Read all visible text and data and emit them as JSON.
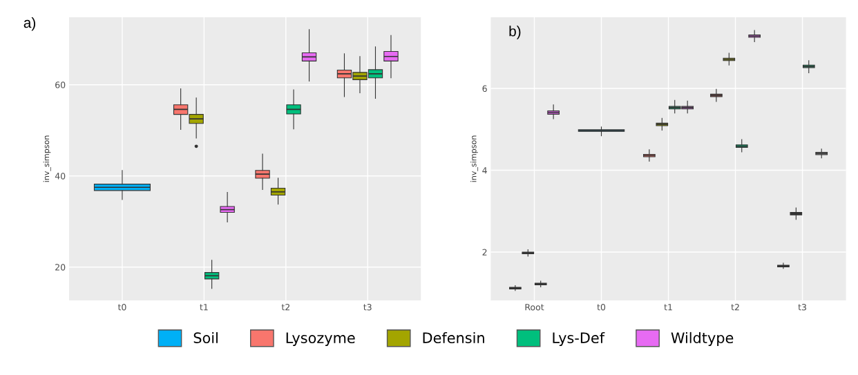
{
  "chart_data": [
    {
      "type": "box",
      "annotations": [
        "a)"
      ],
      "ylabel": "inv_simpson",
      "categories": [
        "t0",
        "t1",
        "t2",
        "t3"
      ],
      "ylim": [
        12.7,
        74.8
      ],
      "yticks": [
        20,
        40,
        60
      ],
      "grid": true,
      "legend": "bottom",
      "series": [
        {
          "name": "Soil",
          "color": "#00b0f6",
          "boxes": [
            {
              "low": 34.8,
              "q1": 36.8,
              "median": 37.5,
              "q3": 38.2,
              "high": 41.2
            },
            null,
            null,
            null
          ]
        },
        {
          "name": "Lysozyme",
          "color": "#f8766d",
          "boxes": [
            null,
            {
              "low": 50.2,
              "q1": 53.5,
              "median": 54.6,
              "q3": 55.6,
              "high": 59.1
            },
            {
              "low": 37.0,
              "q1": 39.5,
              "median": 40.4,
              "q3": 41.2,
              "high": 44.8
            },
            {
              "low": 57.4,
              "q1": 61.5,
              "median": 62.4,
              "q3": 63.2,
              "high": 66.8
            }
          ]
        },
        {
          "name": "Defensin",
          "color": "#a3a500",
          "boxes": [
            null,
            {
              "low": 48.3,
              "q1": 51.5,
              "median": 52.5,
              "q3": 53.5,
              "high": 57.1,
              "outliers": [
                46.5
              ]
            },
            {
              "low": 33.8,
              "q1": 35.8,
              "median": 36.5,
              "q3": 37.3,
              "high": 39.5
            },
            {
              "low": 58.2,
              "q1": 61.1,
              "median": 61.9,
              "q3": 62.7,
              "high": 66.2
            }
          ]
        },
        {
          "name": "Lys-Def",
          "color": "#00bf7d",
          "boxes": [
            null,
            {
              "low": 15.3,
              "q1": 17.4,
              "median": 18.1,
              "q3": 18.8,
              "high": 21.5
            },
            {
              "low": 50.3,
              "q1": 53.6,
              "median": 54.6,
              "q3": 55.6,
              "high": 58.9
            },
            {
              "low": 57.0,
              "q1": 61.5,
              "median": 62.4,
              "q3": 63.3,
              "high": 68.3
            }
          ]
        },
        {
          "name": "Wildtype",
          "color": "#e76bf3",
          "boxes": [
            null,
            {
              "low": 29.9,
              "q1": 32.0,
              "median": 32.6,
              "q3": 33.3,
              "high": 36.4
            },
            {
              "low": 60.8,
              "q1": 65.2,
              "median": 66.1,
              "q3": 67.0,
              "high": 72.1
            },
            {
              "low": 61.5,
              "q1": 65.2,
              "median": 66.2,
              "q3": 67.3,
              "high": 70.8
            }
          ]
        }
      ]
    },
    {
      "type": "box",
      "annotations": [
        "b)"
      ],
      "ylabel": "inv_simpson",
      "categories": [
        "Root",
        "t0",
        "t1",
        "t2",
        "t3"
      ],
      "ylim": [
        0.82,
        7.74
      ],
      "yticks": [
        2,
        4,
        6
      ],
      "grid": true,
      "series": [
        {
          "color": "#00b0f6",
          "boxes": [
            null,
            {
              "low": 4.84,
              "q1": 4.95,
              "median": 4.97,
              "q3": 4.99,
              "high": 5.06
            },
            null,
            null,
            null
          ]
        },
        {
          "color": "#f8766d",
          "colors": [
            "#333333",
            null,
            null,
            null,
            "#333333"
          ],
          "boxes": [
            {
              "low": 1.06,
              "q1": 1.1,
              "median": 1.12,
              "q3": 1.14,
              "high": 1.18
            },
            null,
            {
              "low": 4.22,
              "q1": 4.33,
              "median": 4.36,
              "q3": 4.39,
              "high": 4.5
            },
            {
              "low": 5.68,
              "q1": 5.8,
              "median": 5.83,
              "q3": 5.86,
              "high": 5.98
            },
            {
              "low": 1.6,
              "q1": 1.64,
              "median": 1.66,
              "q3": 1.68,
              "high": 1.73
            }
          ]
        },
        {
          "color": "#a3a500",
          "colors": [
            "#333333",
            null,
            null,
            null,
            "#333333"
          ],
          "boxes": [
            {
              "low": 1.9,
              "q1": 1.96,
              "median": 1.98,
              "q3": 2.0,
              "high": 2.06
            },
            null,
            {
              "low": 4.98,
              "q1": 5.09,
              "median": 5.12,
              "q3": 5.15,
              "high": 5.27
            },
            {
              "low": 6.57,
              "q1": 6.68,
              "median": 6.71,
              "q3": 6.74,
              "high": 6.86
            },
            {
              "low": 2.8,
              "q1": 2.91,
              "median": 2.94,
              "q3": 2.97,
              "high": 3.08
            }
          ]
        },
        {
          "color": "#00bf7d",
          "colors": [
            "#333333",
            null,
            null,
            null,
            null
          ],
          "boxes": [
            {
              "low": 1.15,
              "q1": 1.2,
              "median": 1.22,
              "q3": 1.24,
              "high": 1.29
            },
            null,
            {
              "low": 5.4,
              "q1": 5.5,
              "median": 5.53,
              "q3": 5.56,
              "high": 5.71
            },
            {
              "low": 4.45,
              "q1": 4.56,
              "median": 4.59,
              "q3": 4.62,
              "high": 4.75
            },
            {
              "low": 6.38,
              "q1": 6.51,
              "median": 6.54,
              "q3": 6.57,
              "high": 6.68
            }
          ]
        },
        {
          "color": "#e76bf3",
          "colors": [
            null,
            null,
            null,
            null,
            "#888888"
          ],
          "boxes": [
            {
              "low": 5.26,
              "q1": 5.37,
              "median": 5.41,
              "q3": 5.45,
              "high": 5.6
            },
            null,
            {
              "low": 5.4,
              "q1": 5.5,
              "median": 5.53,
              "q3": 5.56,
              "high": 5.69
            },
            {
              "low": 7.14,
              "q1": 7.25,
              "median": 7.28,
              "q3": 7.31,
              "high": 7.42
            },
            {
              "low": 4.3,
              "q1": 4.38,
              "median": 4.41,
              "q3": 4.44,
              "high": 4.52
            }
          ]
        }
      ]
    }
  ]
}
